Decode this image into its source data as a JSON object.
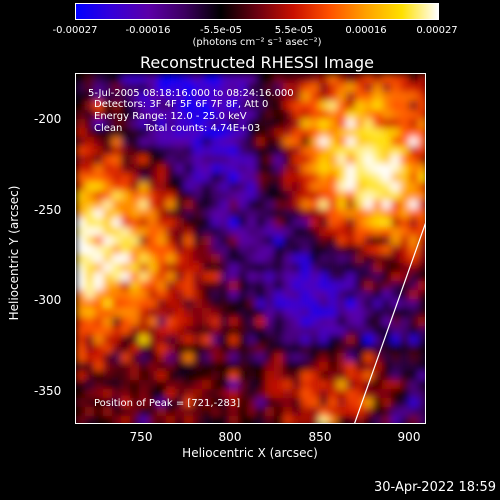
{
  "colorbar": {
    "colors": [
      "#0000ff",
      "#3600d8",
      "#5b00a8",
      "#3c0060",
      "#000000",
      "#6a0010",
      "#c81000",
      "#ff5000",
      "#ffa000",
      "#ffe000",
      "#ffffff"
    ],
    "tick_labels": [
      "-0.00027",
      "-0.00016",
      "-5.5e-05",
      "5.5e-05",
      "0.00016",
      "0.00027"
    ],
    "unit_label": "(photons cm⁻² s⁻¹ asec⁻²)"
  },
  "title": "Reconstructed RHESSI Image",
  "info": {
    "time_range": "5-Jul-2005 08:18:16.000 to 08:24:16.000",
    "detectors": "Detectors: 3F 4F 5F 6F 7F 8F, Att 0",
    "energy_range": "Energy Range: 12.0 - 25.0 keV",
    "algorithm": "Clean",
    "total_counts": "Total counts: 4.74E+03",
    "peak_position": "Position of Peak = [721,-283]"
  },
  "axes": {
    "xlabel": "Heliocentric X (arcsec)",
    "ylabel": "Heliocentric Y (arcsec)",
    "xticks": [
      "750",
      "800",
      "850",
      "900"
    ],
    "yticks": [
      "-200",
      "-250",
      "-300",
      "-350"
    ],
    "xrange": [
      716,
      908
    ],
    "yrange": [
      -372,
      -180
    ]
  },
  "footer": {
    "timestamp": "30-Apr-2022 18:59"
  }
}
